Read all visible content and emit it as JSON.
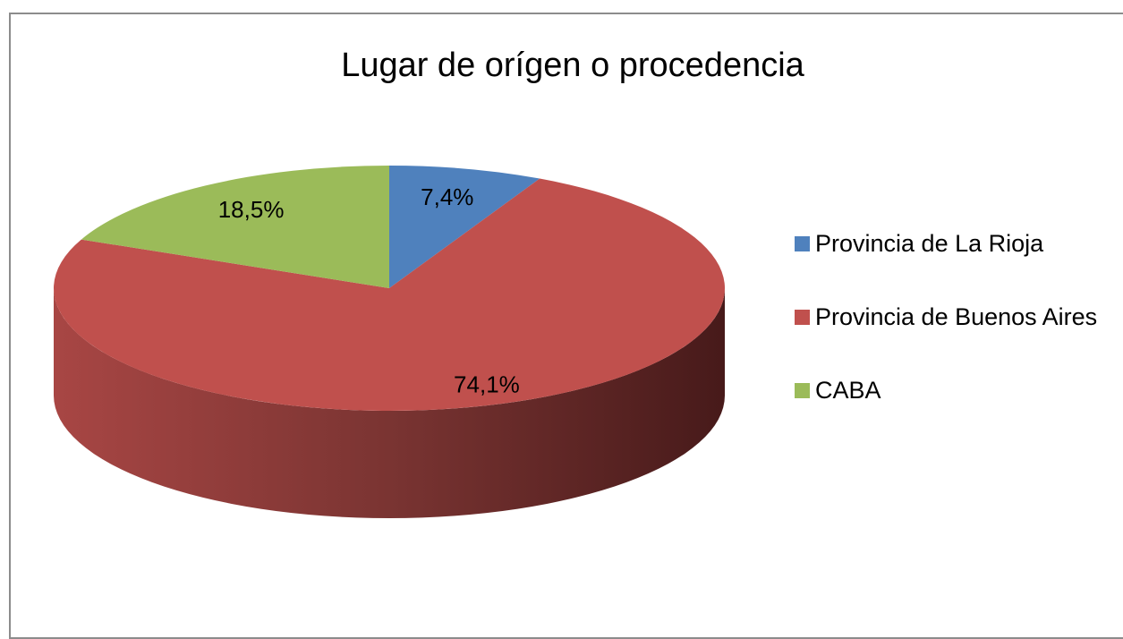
{
  "chart_data": {
    "type": "pie",
    "title": "Lugar de orígen o procedencia",
    "categories": [
      "Provincia de La Rioja",
      "Provincia de Buenos Aires",
      "CABA"
    ],
    "values": [
      7.4,
      74.1,
      18.5
    ],
    "value_labels": [
      "7,4%",
      "74,1%",
      "18,5%"
    ],
    "colors": [
      "#4f81bd",
      "#c0504d",
      "#9bbb59"
    ],
    "legend": "right"
  }
}
